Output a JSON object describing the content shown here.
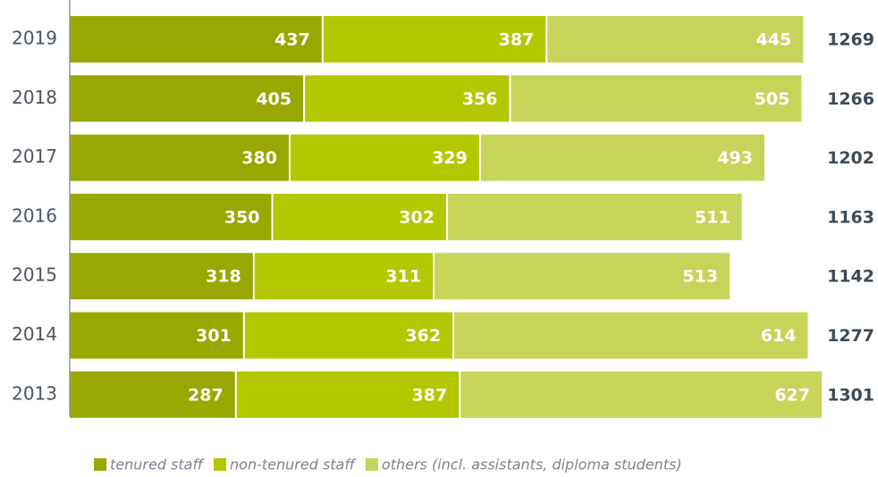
{
  "chart_data": {
    "type": "stacked_bar_horizontal",
    "categories": [
      "2019",
      "2018",
      "2017",
      "2016",
      "2015",
      "2014",
      "2013"
    ],
    "series": [
      {
        "name": "tenured staff",
        "color": "#98a800",
        "values": [
          437,
          405,
          380,
          350,
          318,
          301,
          287
        ]
      },
      {
        "name": "non-tenured staff",
        "color": "#b4c800",
        "values": [
          387,
          356,
          329,
          302,
          311,
          362,
          387
        ]
      },
      {
        "name": "others (incl. assistants, diploma students)",
        "color": "#c6d55a",
        "values": [
          445,
          505,
          493,
          511,
          513,
          614,
          627
        ]
      }
    ],
    "totals": [
      1269,
      1266,
      1202,
      1163,
      1142,
      1277,
      1301
    ]
  }
}
